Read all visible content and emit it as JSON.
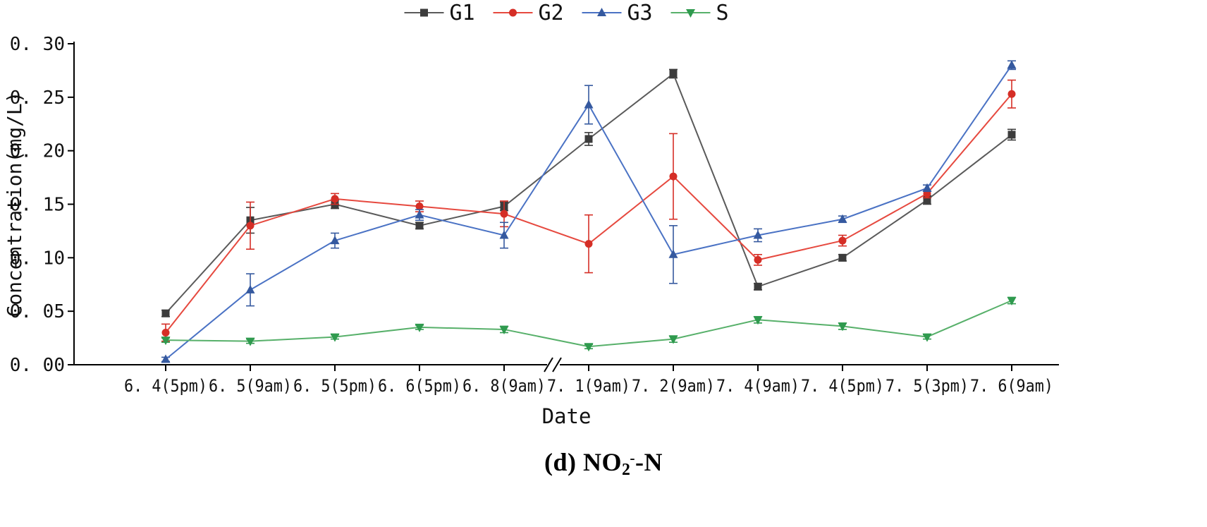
{
  "title": {
    "prefix": "(d) NO",
    "sub": "2",
    "sup": "-",
    "suffix": "-N"
  },
  "chart_data": {
    "type": "line",
    "title": "(d) NO2--N",
    "xlabel": "Date",
    "ylabel": "Concentration(mg/L)",
    "ylim": [
      0.0,
      0.3
    ],
    "ytick_labels": [
      "0. 00",
      "0. 05",
      "0. 10",
      "0. 15",
      "0. 20",
      "0. 25",
      "0. 30"
    ],
    "grid": false,
    "legend_position": "top-center",
    "axis_break": {
      "between": [
        "6. 8(9am)",
        "7. 1(9am)"
      ]
    },
    "categories": [
      "6. 4(5pm)",
      "6. 5(9am)",
      "6. 5(5pm)",
      "6. 6(5pm)",
      "6. 8(9am)",
      "7. 1(9am)",
      "7. 2(9am)",
      "7. 4(9am)",
      "7. 4(5pm)",
      "7. 5(3pm)",
      "7. 6(9am)"
    ],
    "series": [
      {
        "name": "G1",
        "marker": "square",
        "color": "#5a5a5a",
        "marker_color": "#3c3c3c",
        "values": [
          0.048,
          0.135,
          0.15,
          0.13,
          0.148,
          0.211,
          0.272,
          0.073,
          0.1,
          0.154,
          0.215
        ],
        "errors": [
          0.003,
          0.012,
          0.004,
          0.003,
          0.004,
          0.006,
          0.004,
          0.003,
          0.003,
          0.004,
          0.005
        ]
      },
      {
        "name": "G2",
        "marker": "circle",
        "color": "#e6493f",
        "marker_color": "#d52e26",
        "values": [
          0.03,
          0.13,
          0.155,
          0.148,
          0.141,
          0.113,
          0.176,
          0.098,
          0.116,
          0.16,
          0.253
        ],
        "errors": [
          0.008,
          0.022,
          0.005,
          0.005,
          0.012,
          0.027,
          0.04,
          0.005,
          0.005,
          0.004,
          0.013
        ]
      },
      {
        "name": "G3",
        "marker": "triangle-up",
        "color": "#4a72c4",
        "marker_color": "#35599f",
        "values": [
          0.005,
          0.07,
          0.116,
          0.14,
          0.121,
          0.243,
          0.103,
          0.121,
          0.136,
          0.165,
          0.28
        ],
        "errors": [
          0.002,
          0.015,
          0.007,
          0.005,
          0.012,
          0.018,
          0.027,
          0.006,
          0.003,
          0.003,
          0.004
        ]
      },
      {
        "name": "S",
        "marker": "triangle-down",
        "color": "#57b06a",
        "marker_color": "#2f9a4e",
        "values": [
          0.023,
          0.022,
          0.026,
          0.035,
          0.033,
          0.017,
          0.024,
          0.042,
          0.036,
          0.026,
          0.06
        ],
        "errors": [
          0.002,
          0.002,
          0.002,
          0.002,
          0.003,
          0.002,
          0.003,
          0.003,
          0.003,
          0.002,
          0.003
        ]
      }
    ]
  }
}
